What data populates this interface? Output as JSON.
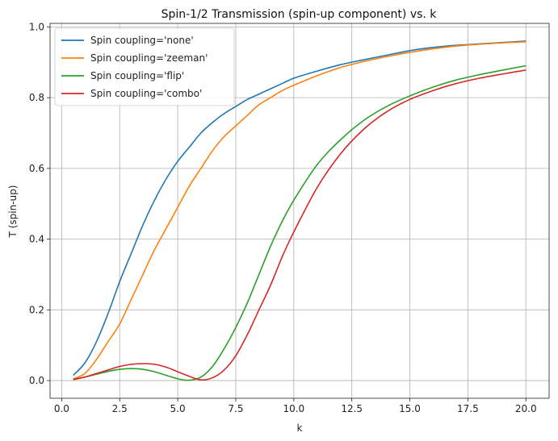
{
  "chart_data": {
    "type": "line",
    "title": "Spin-1/2 Transmission (spin-up component) vs. k",
    "xlabel": "k",
    "ylabel": "T (spin-up)",
    "xlim": [
      -0.5,
      21.0
    ],
    "ylim": [
      -0.05,
      1.01
    ],
    "grid": true,
    "legend_position": "top-left",
    "x_ticks": [
      "0.0",
      "2.5",
      "5.0",
      "7.5",
      "10.0",
      "12.5",
      "15.0",
      "17.5",
      "20.0"
    ],
    "y_ticks": [
      "0.0",
      "0.2",
      "0.4",
      "0.6",
      "0.8",
      "1.0"
    ],
    "x": [
      0.5,
      1,
      1.5,
      2,
      2.5,
      3,
      3.5,
      4,
      4.5,
      5,
      5.5,
      6,
      6.5,
      7,
      7.5,
      8,
      8.5,
      9,
      9.5,
      10,
      11,
      12,
      13,
      14,
      15,
      16,
      17,
      18,
      19,
      20
    ],
    "series": [
      {
        "name": "Spin coupling='none'",
        "color": "#1f77b4",
        "values": [
          0.015,
          0.05,
          0.11,
          0.19,
          0.28,
          0.36,
          0.44,
          0.51,
          0.57,
          0.62,
          0.66,
          0.7,
          0.73,
          0.755,
          0.775,
          0.795,
          0.81,
          0.825,
          0.84,
          0.855,
          0.875,
          0.893,
          0.907,
          0.92,
          0.933,
          0.942,
          0.948,
          0.952,
          0.956,
          0.96
        ]
      },
      {
        "name": "Spin coupling='zeeman'",
        "color": "#ff7f0e",
        "values": [
          0.005,
          0.02,
          0.06,
          0.11,
          0.16,
          0.23,
          0.3,
          0.37,
          0.43,
          0.49,
          0.55,
          0.6,
          0.65,
          0.69,
          0.72,
          0.75,
          0.78,
          0.8,
          0.82,
          0.835,
          0.862,
          0.885,
          0.902,
          0.916,
          0.928,
          0.938,
          0.946,
          0.951,
          0.955,
          0.958
        ]
      },
      {
        "name": "Spin coupling='flip'",
        "color": "#2ca02c",
        "values": [
          0.003,
          0.01,
          0.018,
          0.026,
          0.032,
          0.034,
          0.032,
          0.025,
          0.015,
          0.005,
          0.001,
          0.01,
          0.04,
          0.09,
          0.15,
          0.22,
          0.3,
          0.38,
          0.45,
          0.51,
          0.61,
          0.68,
          0.735,
          0.775,
          0.805,
          0.83,
          0.85,
          0.865,
          0.878,
          0.89
        ]
      },
      {
        "name": "Spin coupling='combo'",
        "color": "#d62728",
        "values": [
          0.003,
          0.01,
          0.02,
          0.03,
          0.04,
          0.046,
          0.048,
          0.046,
          0.038,
          0.025,
          0.012,
          0.002,
          0.008,
          0.03,
          0.07,
          0.13,
          0.2,
          0.27,
          0.35,
          0.42,
          0.545,
          0.64,
          0.71,
          0.76,
          0.795,
          0.82,
          0.84,
          0.855,
          0.867,
          0.878
        ]
      }
    ]
  }
}
